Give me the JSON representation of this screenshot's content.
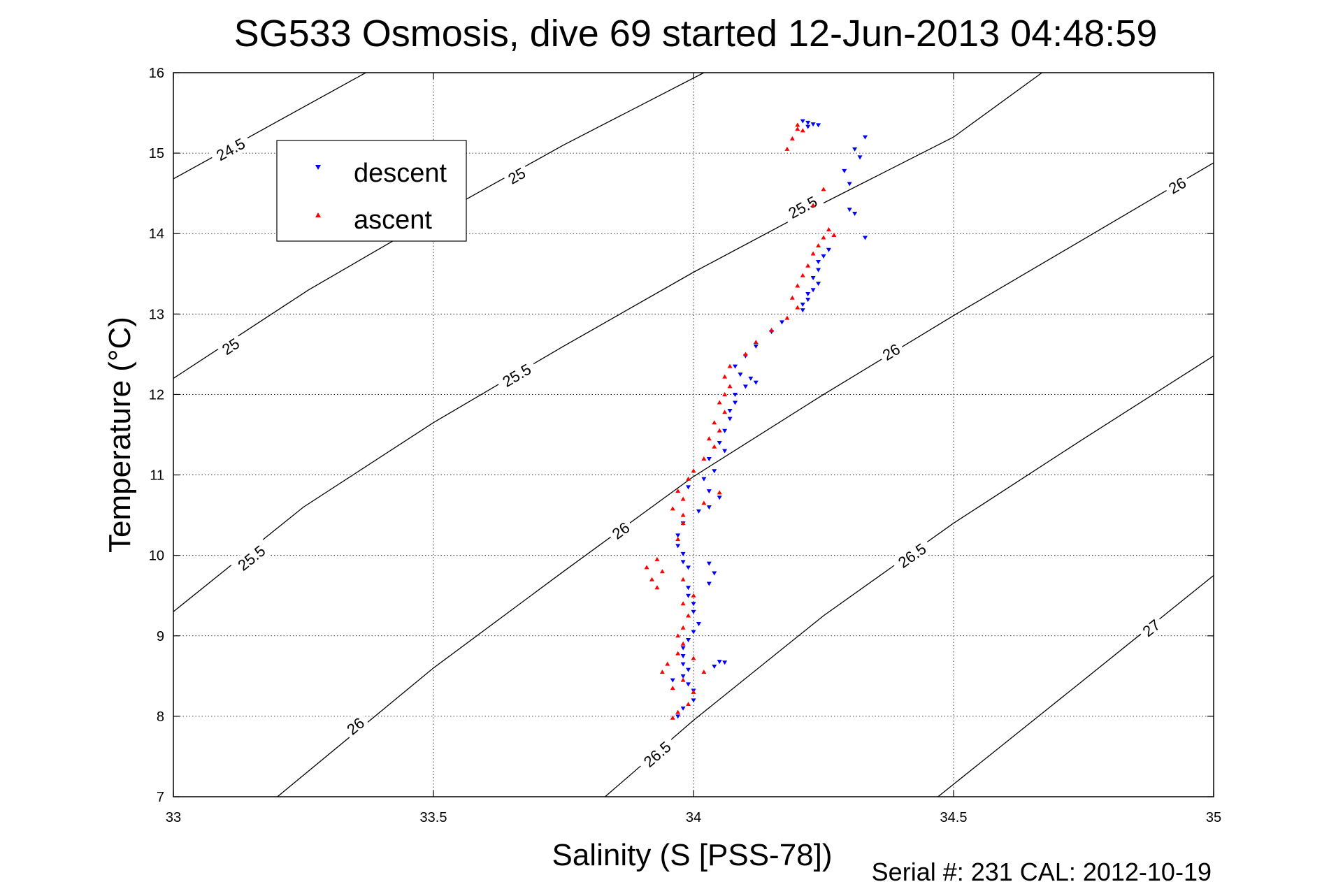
{
  "chart_data": {
    "type": "scatter",
    "title": "SG533 Osmosis, dive 69 started 12-Jun-2013 04:48:59",
    "xlabel": "Salinity (S [PSS-78])",
    "ylabel": "Temperature (°C)",
    "xlim": [
      33,
      35
    ],
    "ylim": [
      7,
      16
    ],
    "x_ticks": [
      "33",
      "33.5",
      "34",
      "34.5",
      "35"
    ],
    "y_ticks": [
      "7",
      "8",
      "9",
      "10",
      "11",
      "12",
      "13",
      "14",
      "15",
      "16"
    ],
    "grid": true,
    "legend_placement": "top-left",
    "contours": {
      "color": "#000000",
      "lines": [
        {
          "level": 24.5,
          "points": [
            [
              33.0,
              14.68
            ],
            [
              33.37,
              16.0
            ]
          ],
          "labels": [
            {
              "text": "24.5",
              "s": 33.11,
              "t": 15.05
            }
          ]
        },
        {
          "level": 25.0,
          "points": [
            [
              33.0,
              12.2
            ],
            [
              33.26,
              13.3
            ],
            [
              33.5,
              14.2
            ],
            [
              33.75,
              15.1
            ],
            [
              34.02,
              16.0
            ]
          ],
          "labels": [
            {
              "text": "25",
              "s": 33.11,
              "t": 12.6
            },
            {
              "text": "25",
              "s": 33.66,
              "t": 14.72
            }
          ]
        },
        {
          "level": 25.5,
          "points": [
            [
              33.0,
              9.3
            ],
            [
              33.25,
              10.6
            ],
            [
              33.5,
              11.65
            ],
            [
              33.75,
              12.6
            ],
            [
              34.0,
              13.52
            ],
            [
              34.25,
              14.38
            ],
            [
              34.5,
              15.2
            ],
            [
              34.67,
              16.0
            ]
          ],
          "labels": [
            {
              "text": "25.5",
              "s": 33.15,
              "t": 9.97
            },
            {
              "text": "25.5",
              "s": 33.66,
              "t": 12.24
            },
            {
              "text": "25.5",
              "s": 34.21,
              "t": 14.33
            }
          ]
        },
        {
          "level": 26.0,
          "points": [
            [
              33.2,
              7.0
            ],
            [
              33.5,
              8.6
            ],
            [
              33.75,
              9.8
            ],
            [
              34.0,
              10.98
            ],
            [
              34.25,
              12.0
            ],
            [
              34.5,
              12.98
            ],
            [
              34.75,
              13.93
            ],
            [
              35.0,
              14.88
            ]
          ],
          "labels": [
            {
              "text": "26",
              "s": 33.35,
              "t": 7.88
            },
            {
              "text": "26",
              "s": 33.86,
              "t": 10.31
            },
            {
              "text": "26",
              "s": 34.38,
              "t": 12.53
            },
            {
              "text": "26",
              "s": 34.93,
              "t": 14.6
            }
          ]
        },
        {
          "level": 26.5,
          "points": [
            [
              33.83,
              7.0
            ],
            [
              34.0,
              7.95
            ],
            [
              34.25,
              9.25
            ],
            [
              34.5,
              10.4
            ],
            [
              34.75,
              11.45
            ],
            [
              35.0,
              12.48
            ]
          ],
          "labels": [
            {
              "text": "26.5",
              "s": 33.93,
              "t": 7.53
            },
            {
              "text": "26.5",
              "s": 34.42,
              "t": 10.0
            }
          ]
        },
        {
          "level": 27.0,
          "points": [
            [
              34.47,
              7.0
            ],
            [
              34.75,
              8.45
            ],
            [
              35.0,
              9.75
            ]
          ],
          "labels": [
            {
              "text": "27",
              "s": 34.88,
              "t": 9.1
            }
          ]
        }
      ]
    },
    "series": [
      {
        "name": "descent",
        "color": "#0000ff",
        "marker": "triangle-down",
        "points": [
          [
            34.21,
            15.4
          ],
          [
            34.22,
            15.38
          ],
          [
            34.23,
            15.36
          ],
          [
            34.24,
            15.35
          ],
          [
            34.22,
            15.33
          ],
          [
            34.33,
            15.2
          ],
          [
            34.31,
            15.05
          ],
          [
            34.32,
            14.95
          ],
          [
            34.29,
            14.78
          ],
          [
            34.3,
            14.62
          ],
          [
            34.3,
            14.3
          ],
          [
            34.31,
            14.25
          ],
          [
            34.33,
            13.95
          ],
          [
            34.26,
            13.8
          ],
          [
            34.25,
            13.72
          ],
          [
            34.24,
            13.65
          ],
          [
            34.24,
            13.55
          ],
          [
            34.23,
            13.45
          ],
          [
            34.24,
            13.38
          ],
          [
            34.23,
            13.3
          ],
          [
            34.22,
            13.25
          ],
          [
            34.22,
            13.18
          ],
          [
            34.21,
            13.12
          ],
          [
            34.21,
            13.05
          ],
          [
            34.17,
            12.9
          ],
          [
            34.15,
            12.78
          ],
          [
            34.12,
            12.6
          ],
          [
            34.1,
            12.48
          ],
          [
            34.08,
            12.35
          ],
          [
            34.09,
            12.25
          ],
          [
            34.11,
            12.2
          ],
          [
            34.12,
            12.15
          ],
          [
            34.1,
            12.1
          ],
          [
            34.08,
            12.0
          ],
          [
            34.08,
            11.9
          ],
          [
            34.07,
            11.8
          ],
          [
            34.07,
            11.7
          ],
          [
            34.06,
            11.55
          ],
          [
            34.05,
            11.4
          ],
          [
            34.06,
            11.3
          ],
          [
            34.03,
            11.2
          ],
          [
            34.04,
            11.05
          ],
          [
            34.02,
            10.95
          ],
          [
            33.99,
            10.85
          ],
          [
            34.03,
            10.8
          ],
          [
            34.05,
            10.72
          ],
          [
            34.03,
            10.6
          ],
          [
            34.01,
            10.55
          ],
          [
            33.98,
            10.4
          ],
          [
            33.97,
            10.25
          ],
          [
            33.97,
            10.12
          ],
          [
            33.98,
            10.02
          ],
          [
            33.98,
            9.92
          ],
          [
            33.99,
            9.85
          ],
          [
            34.03,
            9.9
          ],
          [
            34.04,
            9.78
          ],
          [
            34.03,
            9.65
          ],
          [
            33.99,
            9.6
          ],
          [
            33.99,
            9.5
          ],
          [
            34.0,
            9.4
          ],
          [
            34.0,
            9.3
          ],
          [
            34.01,
            9.15
          ],
          [
            34.0,
            9.05
          ],
          [
            33.99,
            8.95
          ],
          [
            33.98,
            8.85
          ],
          [
            33.98,
            8.75
          ],
          [
            33.98,
            8.65
          ],
          [
            33.99,
            8.58
          ],
          [
            34.04,
            8.62
          ],
          [
            34.05,
            8.68
          ],
          [
            34.06,
            8.67
          ],
          [
            33.98,
            8.5
          ],
          [
            33.96,
            8.45
          ],
          [
            33.99,
            8.4
          ],
          [
            34.0,
            8.32
          ],
          [
            34.0,
            8.2
          ],
          [
            33.98,
            8.1
          ],
          [
            33.97,
            8.0
          ]
        ]
      },
      {
        "name": "ascent",
        "color": "#ff0000",
        "marker": "triangle-up",
        "points": [
          [
            34.2,
            15.35
          ],
          [
            34.2,
            15.3
          ],
          [
            34.21,
            15.28
          ],
          [
            34.19,
            15.18
          ],
          [
            34.18,
            15.05
          ],
          [
            34.25,
            14.55
          ],
          [
            34.23,
            14.35
          ],
          [
            34.26,
            14.05
          ],
          [
            34.27,
            13.98
          ],
          [
            34.25,
            13.95
          ],
          [
            34.24,
            13.85
          ],
          [
            34.23,
            13.75
          ],
          [
            34.22,
            13.6
          ],
          [
            34.21,
            13.48
          ],
          [
            34.2,
            13.35
          ],
          [
            34.19,
            13.2
          ],
          [
            34.2,
            13.08
          ],
          [
            34.18,
            12.95
          ],
          [
            34.15,
            12.8
          ],
          [
            34.12,
            12.65
          ],
          [
            34.1,
            12.5
          ],
          [
            34.07,
            12.35
          ],
          [
            34.06,
            12.22
          ],
          [
            34.07,
            12.1
          ],
          [
            34.06,
            12.0
          ],
          [
            34.05,
            11.9
          ],
          [
            34.06,
            11.78
          ],
          [
            34.04,
            11.65
          ],
          [
            34.05,
            11.55
          ],
          [
            34.03,
            11.45
          ],
          [
            34.04,
            11.35
          ],
          [
            34.02,
            11.2
          ],
          [
            34.0,
            11.05
          ],
          [
            33.99,
            10.95
          ],
          [
            33.97,
            10.8
          ],
          [
            33.98,
            10.7
          ],
          [
            34.05,
            10.78
          ],
          [
            34.02,
            10.65
          ],
          [
            33.96,
            10.58
          ],
          [
            33.98,
            10.5
          ],
          [
            33.98,
            10.4
          ],
          [
            33.97,
            10.2
          ],
          [
            33.93,
            9.95
          ],
          [
            33.91,
            9.85
          ],
          [
            33.94,
            9.8
          ],
          [
            33.98,
            9.7
          ],
          [
            33.92,
            9.7
          ],
          [
            33.93,
            9.6
          ],
          [
            34.0,
            9.5
          ],
          [
            33.98,
            9.4
          ],
          [
            33.99,
            9.25
          ],
          [
            33.98,
            9.1
          ],
          [
            33.97,
            9.0
          ],
          [
            33.98,
            8.9
          ],
          [
            33.97,
            8.78
          ],
          [
            34.0,
            8.72
          ],
          [
            33.95,
            8.65
          ],
          [
            33.94,
            8.55
          ],
          [
            34.02,
            8.55
          ],
          [
            33.98,
            8.45
          ],
          [
            33.96,
            8.35
          ],
          [
            34.0,
            8.3
          ],
          [
            33.99,
            8.15
          ],
          [
            33.97,
            8.05
          ],
          [
            33.96,
            7.98
          ]
        ]
      }
    ]
  },
  "footer": {
    "serial_text": "Serial #: 231  CAL: 2012-10-19"
  }
}
